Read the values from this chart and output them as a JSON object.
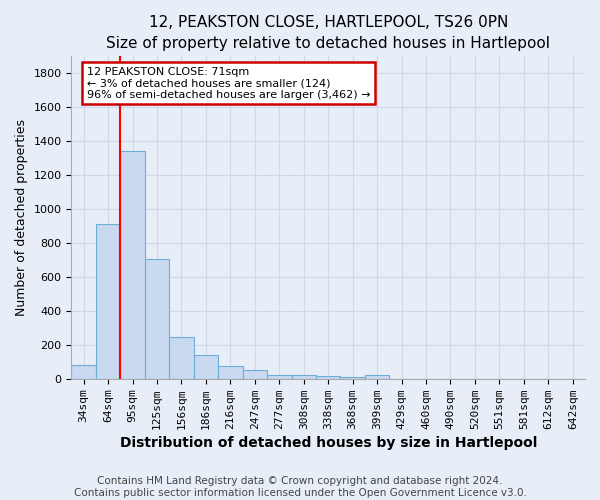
{
  "title": "12, PEAKSTON CLOSE, HARTLEPOOL, TS26 0PN",
  "subtitle": "Size of property relative to detached houses in Hartlepool",
  "xlabel": "Distribution of detached houses by size in Hartlepool",
  "ylabel": "Number of detached properties",
  "categories": [
    "34sqm",
    "64sqm",
    "95sqm",
    "125sqm",
    "156sqm",
    "186sqm",
    "216sqm",
    "247sqm",
    "277sqm",
    "308sqm",
    "338sqm",
    "368sqm",
    "399sqm",
    "429sqm",
    "460sqm",
    "490sqm",
    "520sqm",
    "551sqm",
    "581sqm",
    "612sqm",
    "642sqm"
  ],
  "values": [
    80,
    910,
    1340,
    705,
    248,
    138,
    78,
    50,
    25,
    22,
    15,
    10,
    20,
    0,
    0,
    0,
    0,
    0,
    0,
    0,
    0
  ],
  "bar_color": "#c9d9f0",
  "bar_edge_color": "#6baed6",
  "annotation_line1": "12 PEAKSTON CLOSE: 71sqm",
  "annotation_line2": "← 3% of detached houses are smaller (124)",
  "annotation_line3": "96% of semi-detached houses are larger (3,462) →",
  "annotation_box_edge_color": "#cc0000",
  "red_line_x": 1.47,
  "ylim": [
    0,
    1900
  ],
  "yticks": [
    0,
    200,
    400,
    600,
    800,
    1000,
    1200,
    1400,
    1600,
    1800
  ],
  "background_color": "#e8eef8",
  "grid_color": "#d0d8e8",
  "title_fontsize": 11,
  "subtitle_fontsize": 10,
  "axis_label_fontsize": 9,
  "tick_fontsize": 8,
  "footer_fontsize": 7.5,
  "footer_line1": "Contains HM Land Registry data © Crown copyright and database right 2024.",
  "footer_line2": "Contains public sector information licensed under the Open Government Licence v3.0."
}
